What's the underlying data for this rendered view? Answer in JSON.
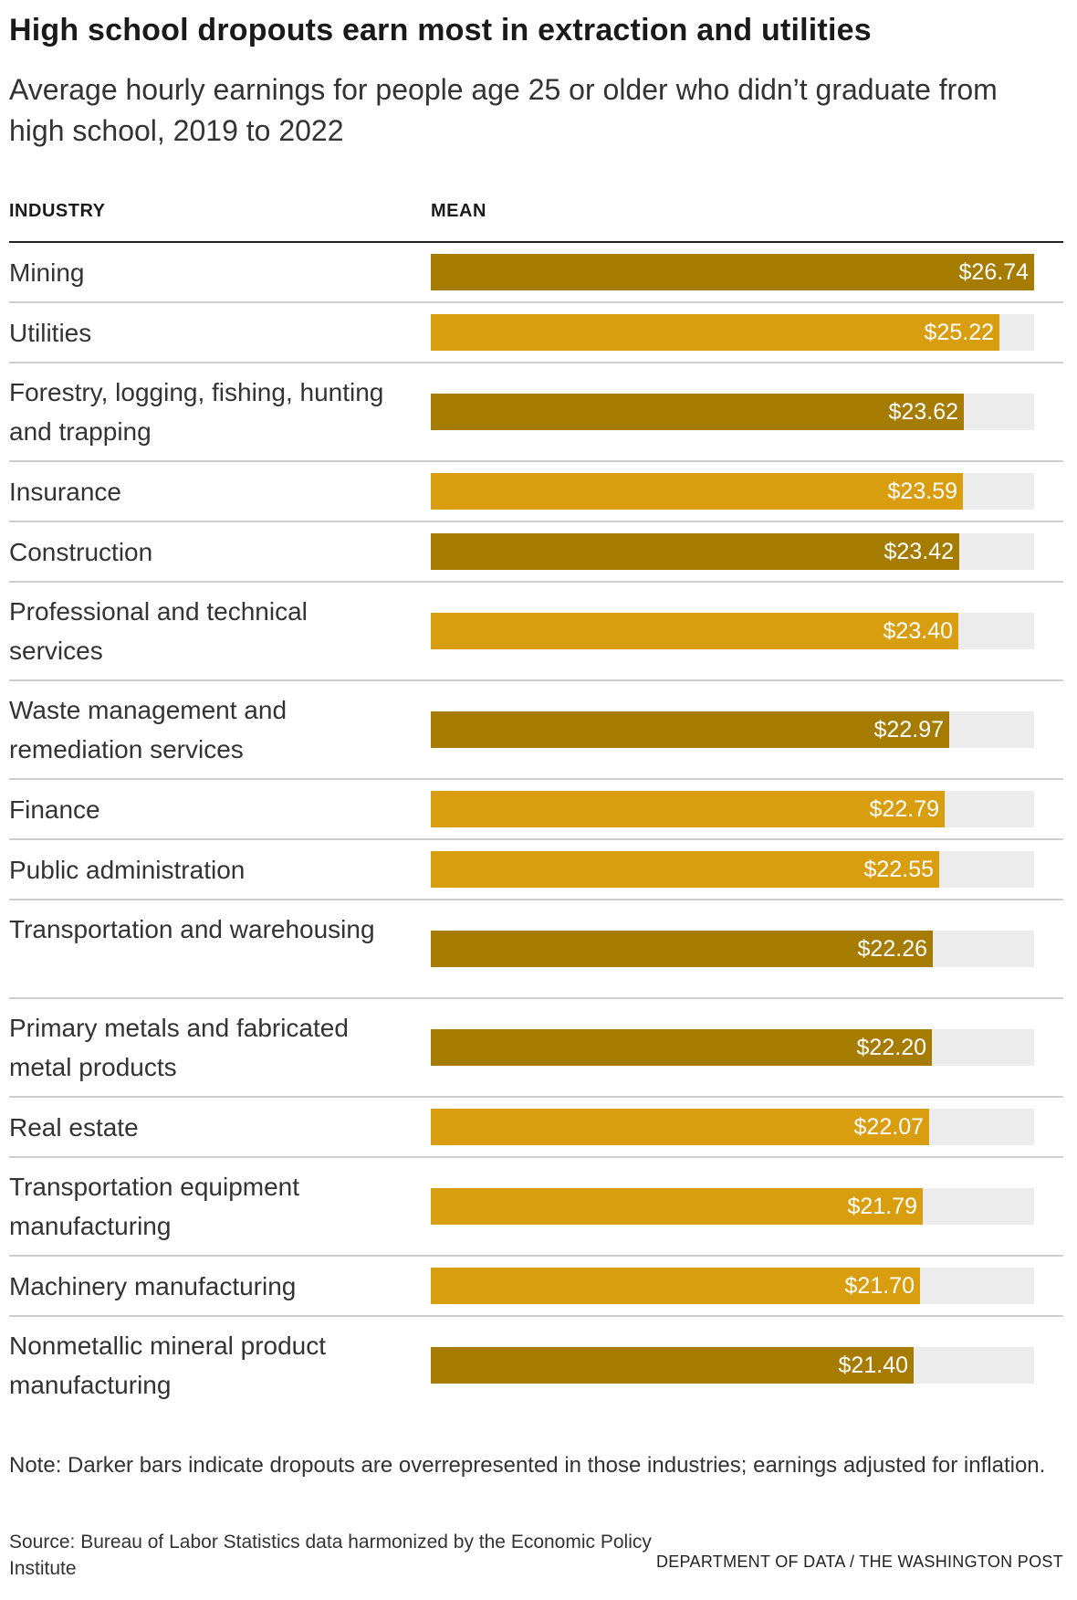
{
  "header": {
    "title": "High school dropouts earn most in extraction and utilities",
    "subtitle": "Average hourly earnings for people age 25 or older who didn’t graduate from high school, 2019 to 2022"
  },
  "columns": {
    "industry": "INDUSTRY",
    "mean": "MEAN"
  },
  "colors": {
    "dark": "#a67c00",
    "light": "#d99e0f",
    "track": "#ececec"
  },
  "chart_data": {
    "type": "bar",
    "orientation": "horizontal",
    "xlim": [
      0,
      26.74
    ],
    "categories": [
      "Mining",
      "Utilities",
      "Forestry, logging, fishing, hunting and trapping",
      "Insurance",
      "Construction",
      "Professional and technical services",
      "Waste management and remediation services",
      "Finance",
      "Public administration",
      "Transportation and warehousing",
      "Primary metals and fabricated metal products",
      "Real estate",
      "Transportation equipment manufacturing",
      "Machinery manufacturing",
      "Nonmetallic mineral product manufacturing"
    ],
    "values": [
      26.74,
      25.22,
      23.62,
      23.59,
      23.42,
      23.4,
      22.97,
      22.79,
      22.55,
      22.26,
      22.2,
      22.07,
      21.79,
      21.7,
      21.4
    ],
    "value_labels": [
      "$26.74",
      "$25.22",
      "$23.62",
      "$23.59",
      "$23.42",
      "$23.40",
      "$22.97",
      "$22.79",
      "$22.55",
      "$22.26",
      "$22.20",
      "$22.07",
      "$21.79",
      "$21.70",
      "$21.40"
    ],
    "overrepresented": [
      true,
      false,
      true,
      false,
      true,
      false,
      true,
      false,
      false,
      true,
      true,
      false,
      false,
      false,
      true
    ]
  },
  "footer": {
    "note": "Note: Darker bars indicate dropouts are overrepresented in those industries; earnings adjusted for inflation.",
    "source": "Source: Bureau of Labor Statistics data harmonized by the Economic Policy Institute",
    "credit": "DEPARTMENT OF DATA / THE WASHINGTON POST"
  }
}
